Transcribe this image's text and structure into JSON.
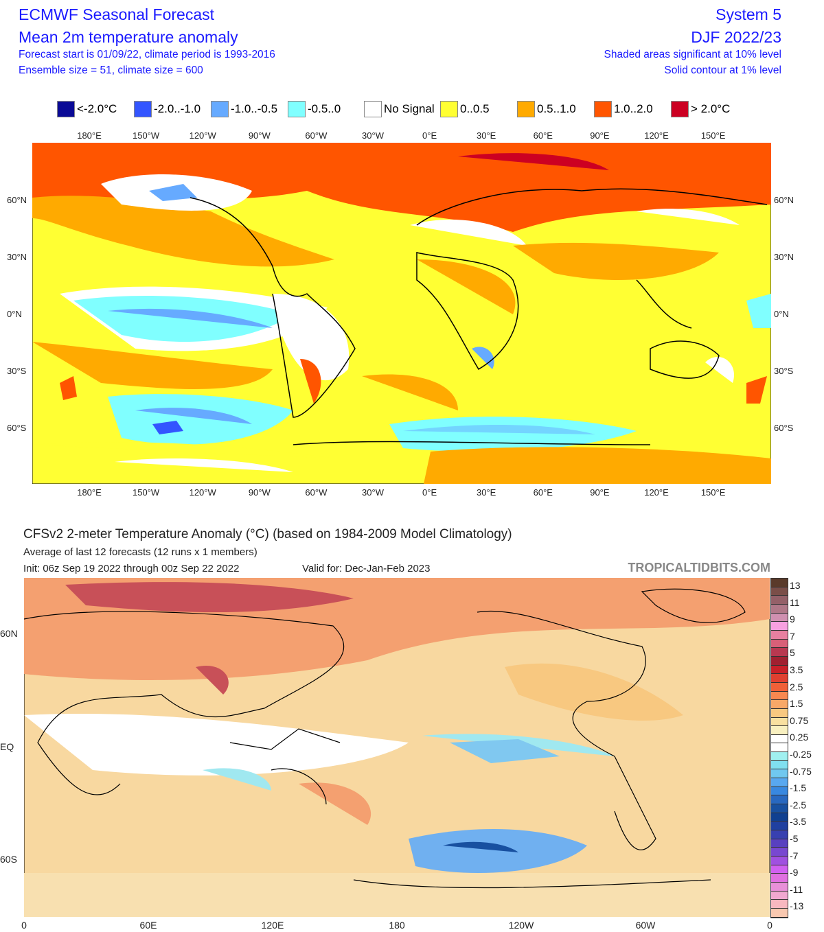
{
  "ecmwf": {
    "title": "ECMWF Seasonal Forecast",
    "subtitle": "Mean 2m temperature anomaly",
    "line3": "Forecast start is 01/09/22, climate period is 1993-2016",
    "line4": "Ensemble size = 51, climate size = 600",
    "system": "System 5",
    "period": "DJF 2022/23",
    "sig1": "Shaded areas significant at 10% level",
    "sig2": "Solid contour at 1% level",
    "legend": [
      {
        "label": "<-2.0°C",
        "color": "#0a0a96"
      },
      {
        "label": "-2.0..-1.0",
        "color": "#3355ff"
      },
      {
        "label": "-1.0..-0.5",
        "color": "#66aaff"
      },
      {
        "label": "-0.5..0",
        "color": "#80ffff"
      },
      {
        "label": "No Signal",
        "color": "#ffffff"
      },
      {
        "label": "0..0.5",
        "color": "#ffff33"
      },
      {
        "label": "0.5..1.0",
        "color": "#ffaa00"
      },
      {
        "label": "1.0..2.0",
        "color": "#ff5500"
      },
      {
        "label": "> 2.0°C",
        "color": "#cc0022"
      }
    ],
    "lon_labels": [
      "180°E",
      "150°W",
      "120°W",
      "90°W",
      "60°W",
      "30°W",
      "0°E",
      "30°E",
      "60°E",
      "90°E",
      "120°E",
      "150°E"
    ],
    "lat_labels": [
      "60°N",
      "30°N",
      "0°N",
      "30°S",
      "60°S"
    ]
  },
  "cfs": {
    "title": "CFSv2 2-meter Temperature Anomaly (°C) (based on 1984-2009 Model Climatology)",
    "subtitle": "Average of last 12 forecasts (12 runs x 1 members)",
    "init": "Init: 06z Sep 19 2022 through 00z Sep 22 2022",
    "valid": "Valid for: Dec-Jan-Feb 2023",
    "brand": "TROPICALTIDBITS.COM",
    "lon_labels": [
      "0",
      "60E",
      "120E",
      "180",
      "120W",
      "60W",
      "0"
    ],
    "lat_labels": [
      "60N",
      "EQ",
      "60S"
    ],
    "colorbar_labels": [
      "13",
      "11",
      "9",
      "7",
      "5",
      "3.5",
      "2.5",
      "1.5",
      "0.75",
      "0.25",
      "-0.25",
      "-0.75",
      "-1.5",
      "-2.5",
      "-3.5",
      "-5",
      "-7",
      "-9",
      "-11",
      "-13"
    ],
    "colorbar_colors": [
      "#5a3a2a",
      "#7a4e48",
      "#946068",
      "#b07888",
      "#d090b0",
      "#f8a0e0",
      "#e880a0",
      "#d86078",
      "#b83850",
      "#a02030",
      "#c82028",
      "#e04030",
      "#f06038",
      "#f88850",
      "#f8a868",
      "#f8c880",
      "#f8e0a0",
      "#f8f0c0",
      "#ffffff",
      "#ffffff",
      "#a0f0f0",
      "#80e0f0",
      "#70c8f0",
      "#58a8f0",
      "#3888e0",
      "#2868c0",
      "#1850a0",
      "#104090",
      "#2040a0",
      "#3840b0",
      "#5840c0",
      "#7848d0",
      "#a050e0",
      "#d060f0",
      "#e070e0",
      "#e890d8",
      "#f0a8d0",
      "#f8b8c0",
      "#f8c8b0"
    ]
  }
}
